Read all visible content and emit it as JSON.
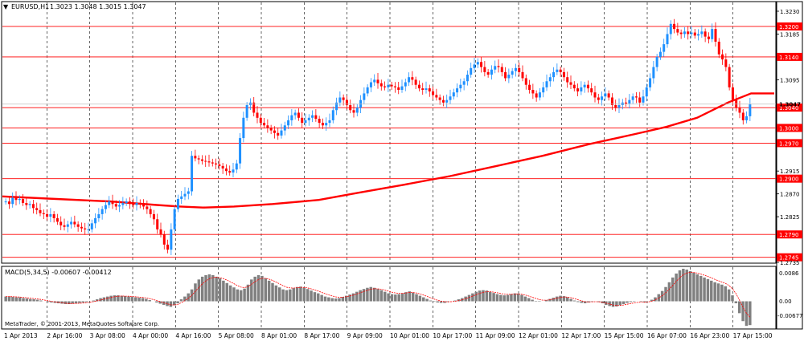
{
  "header": {
    "symbol": "EURUSD,H1",
    "ohlc": "1.3023 1.3048 1.3015 1.3047"
  },
  "indicator": {
    "label": "MACD(5,34,5) -0.00607 -0.00412",
    "axis_top": "0.0086",
    "axis_zero": "0.00",
    "axis_bottom": "-0.00677"
  },
  "copyright": "MetaTrader, © 2001-2013, MetaQuotes Software Corp.",
  "colors": {
    "bull": "#1e90ff",
    "bear": "#ff0000",
    "ma": "#ff0000",
    "level": "#ff0000",
    "grid": "#000000",
    "histogram": "#808080",
    "signal": "#ff0000",
    "current_price_line": "#c0c0c0"
  },
  "chart_data": [
    {
      "type": "candlestick",
      "title": "EURUSD,H1",
      "timeframe": "H1",
      "ylim": [
        1.2735,
        1.323
      ],
      "price_axis_ticks": [
        "1.3230",
        "1.3185",
        "1.3095",
        "1.2915",
        "1.2870",
        "1.2825",
        "1.2735"
      ],
      "horizontal_levels": [
        1.32,
        1.314,
        1.304,
        1.3,
        1.297,
        1.29,
        1.279,
        1.2745
      ],
      "current_price_label": "1.3047",
      "time_labels": [
        "1 Apr 2013",
        "2 Apr 16:00",
        "3 Apr 08:00",
        "4 Apr 00:00",
        "4 Apr 16:00",
        "5 Apr 08:00",
        "8 Apr 01:00",
        "8 Apr 17:00",
        "9 Apr 09:00",
        "10 Apr 01:00",
        "10 Apr 17:00",
        "11 Apr 09:00",
        "12 Apr 01:00",
        "12 Apr 17:00",
        "15 Apr 15:00",
        "16 Apr 07:00",
        "16 Apr 23:00",
        "17 Apr 15:00"
      ],
      "close_path": [
        1.2855,
        1.285,
        1.2862,
        1.2858,
        1.286,
        1.2852,
        1.2848,
        1.285,
        1.2842,
        1.2838,
        1.2832,
        1.283,
        1.2825,
        1.283,
        1.2822,
        1.2815,
        1.2808,
        1.2805,
        1.281,
        1.2815,
        1.281,
        1.2805,
        1.2802,
        1.28,
        1.28,
        1.2812,
        1.2822,
        1.283,
        1.284,
        1.2848,
        1.2855,
        1.285,
        1.2845,
        1.2848,
        1.2852,
        1.2855,
        1.285,
        1.2848,
        1.2852,
        1.285,
        1.2845,
        1.284,
        1.283,
        1.282,
        1.28,
        1.279,
        1.277,
        1.276,
        1.28,
        1.284,
        1.286,
        1.2865,
        1.287,
        1.2875,
        1.2945,
        1.294,
        1.2938,
        1.2935,
        1.2934,
        1.2932,
        1.293,
        1.2928,
        1.2925,
        1.292,
        1.2915,
        1.2912,
        1.2918,
        1.293,
        1.298,
        1.302,
        1.3045,
        1.305,
        1.303,
        1.302,
        1.301,
        1.3005,
        1.3,
        1.2995,
        1.299,
        1.2985,
        1.2995,
        1.3005,
        1.3015,
        1.3025,
        1.303,
        1.302,
        1.301,
        1.3015,
        1.302,
        1.3025,
        1.3018,
        1.301,
        1.3005,
        1.301,
        1.3015,
        1.3035,
        1.305,
        1.306,
        1.3055,
        1.3045,
        1.3035,
        1.303,
        1.304,
        1.3055,
        1.3068,
        1.308,
        1.309,
        1.3095,
        1.3088,
        1.3082,
        1.308,
        1.3085,
        1.3082,
        1.308,
        1.3075,
        1.3082,
        1.309,
        1.31,
        1.3095,
        1.3085,
        1.3078,
        1.3075,
        1.3078,
        1.3072,
        1.3065,
        1.306,
        1.3055,
        1.305,
        1.3055,
        1.3062,
        1.307,
        1.3078,
        1.3085,
        1.3092,
        1.3105,
        1.3118,
        1.3125,
        1.313,
        1.312,
        1.311,
        1.3105,
        1.3115,
        1.3122,
        1.312,
        1.311,
        1.3098,
        1.3105,
        1.3112,
        1.3118,
        1.311,
        1.3098,
        1.3085,
        1.3075,
        1.3068,
        1.306,
        1.307,
        1.308,
        1.3092,
        1.31,
        1.311,
        1.3115,
        1.311,
        1.31,
        1.309,
        1.3085,
        1.3078,
        1.3072,
        1.308,
        1.3085,
        1.3078,
        1.307,
        1.306,
        1.3055,
        1.3062,
        1.3068,
        1.306,
        1.3045,
        1.304,
        1.3045,
        1.305,
        1.3048,
        1.3055,
        1.3062,
        1.306,
        1.305,
        1.3062,
        1.308,
        1.3098,
        1.312,
        1.314,
        1.315,
        1.3165,
        1.3185,
        1.3205,
        1.3195,
        1.3188,
        1.3185,
        1.319,
        1.3185,
        1.3188,
        1.3182,
        1.3185,
        1.319,
        1.318,
        1.3175,
        1.3195,
        1.317,
        1.3145,
        1.3135,
        1.312,
        1.308,
        1.3055,
        1.304,
        1.303,
        1.3015,
        1.3023,
        1.3047
      ],
      "moving_average": {
        "color": "#ff0000",
        "points": [
          [
            0,
            1.2865
          ],
          [
            0.07,
            1.286
          ],
          [
            0.14,
            1.2855
          ],
          [
            0.2,
            1.2848
          ],
          [
            0.23,
            1.2845
          ],
          [
            0.26,
            1.2843
          ],
          [
            0.3,
            1.2845
          ],
          [
            0.35,
            1.285
          ],
          [
            0.41,
            1.2858
          ],
          [
            0.46,
            1.2872
          ],
          [
            0.52,
            1.2888
          ],
          [
            0.58,
            1.2905
          ],
          [
            0.64,
            1.2925
          ],
          [
            0.7,
            1.2945
          ],
          [
            0.76,
            1.2968
          ],
          [
            0.82,
            1.2988
          ],
          [
            0.86,
            1.3002
          ],
          [
            0.9,
            1.302
          ],
          [
            0.94,
            1.305
          ],
          [
            0.97,
            1.3068
          ],
          [
            1,
            1.3068
          ]
        ]
      }
    },
    {
      "type": "bar",
      "title": "MACD(5,34,5) -0.00607 -0.00412",
      "ylim": [
        -0.00677,
        0.0086
      ],
      "values": [
        0.0012,
        0.0012,
        0.0011,
        0.001,
        0.001,
        0.0008,
        0.0007,
        0.0006,
        0.0005,
        0.0004,
        0.0002,
        0.0,
        -0.0002,
        -0.0003,
        -0.0004,
        -0.0005,
        -0.0006,
        -0.0007,
        -0.0007,
        -0.0006,
        -0.0005,
        -0.0004,
        -0.0003,
        -0.0002,
        0.0,
        0.0002,
        0.0005,
        0.0008,
        0.001,
        0.0012,
        0.0014,
        0.0015,
        0.0015,
        0.0014,
        0.0013,
        0.0012,
        0.0011,
        0.001,
        0.0009,
        0.0008,
        0.0006,
        0.0003,
        0.0,
        -0.0003,
        -0.0006,
        -0.0009,
        -0.0012,
        -0.0014,
        -0.001,
        -0.0005,
        0.0005,
        0.0012,
        0.002,
        0.003,
        0.0045,
        0.0055,
        0.0062,
        0.0066,
        0.0068,
        0.0066,
        0.0062,
        0.0058,
        0.0052,
        0.0046,
        0.004,
        0.0035,
        0.003,
        0.0028,
        0.0032,
        0.0042,
        0.0055,
        0.0062,
        0.0066,
        0.0064,
        0.0058,
        0.0052,
        0.0046,
        0.004,
        0.0035,
        0.003,
        0.0028,
        0.003,
        0.0033,
        0.0036,
        0.0037,
        0.0034,
        0.0031,
        0.0027,
        0.0023,
        0.002,
        0.0016,
        0.0012,
        0.001,
        0.0008,
        0.0007,
        0.0008,
        0.0011,
        0.0014,
        0.0017,
        0.002,
        0.0024,
        0.0028,
        0.0031,
        0.0034,
        0.0036,
        0.0034,
        0.0031,
        0.0028,
        0.0024,
        0.002,
        0.0018,
        0.0017,
        0.0018,
        0.002,
        0.0023,
        0.0025,
        0.0022,
        0.0018,
        0.0014,
        0.001,
        0.0006,
        0.0002,
        -0.0001,
        -0.0003,
        -0.0004,
        -0.0004,
        -0.0002,
        0.0,
        0.0002,
        0.0005,
        0.0008,
        0.0012,
        0.0016,
        0.002,
        0.0024,
        0.0027,
        0.0028,
        0.0027,
        0.0024,
        0.0021,
        0.0018,
        0.0016,
        0.0015,
        0.0016,
        0.0018,
        0.002,
        0.0019,
        0.0016,
        0.0012,
        0.0008,
        0.0004,
        0.0001,
        -0.0001,
        0.0,
        0.0003,
        0.0006,
        0.0009,
        0.0012,
        0.0014,
        0.0013,
        0.001,
        0.0006,
        0.0002,
        -0.0002,
        -0.0004,
        -0.0005,
        -0.0003,
        -0.0001,
        0.0,
        -0.0002,
        -0.0005,
        -0.0009,
        -0.0012,
        -0.0014,
        -0.0013,
        -0.001,
        -0.0007,
        -0.0004,
        -0.0002,
        -0.0001,
        0.0,
        -0.0001,
        -0.0003,
        0.0,
        0.0004,
        0.001,
        0.0018,
        0.0026,
        0.0036,
        0.0048,
        0.006,
        0.007,
        0.0078,
        0.0082,
        0.008,
        0.0076,
        0.0072,
        0.0068,
        0.0064,
        0.006,
        0.0056,
        0.0052,
        0.0048,
        0.0045,
        0.0042,
        0.0038,
        0.003,
        0.0015,
        -0.0005,
        -0.003,
        -0.005,
        -0.0062,
        -0.006
      ]
    }
  ]
}
